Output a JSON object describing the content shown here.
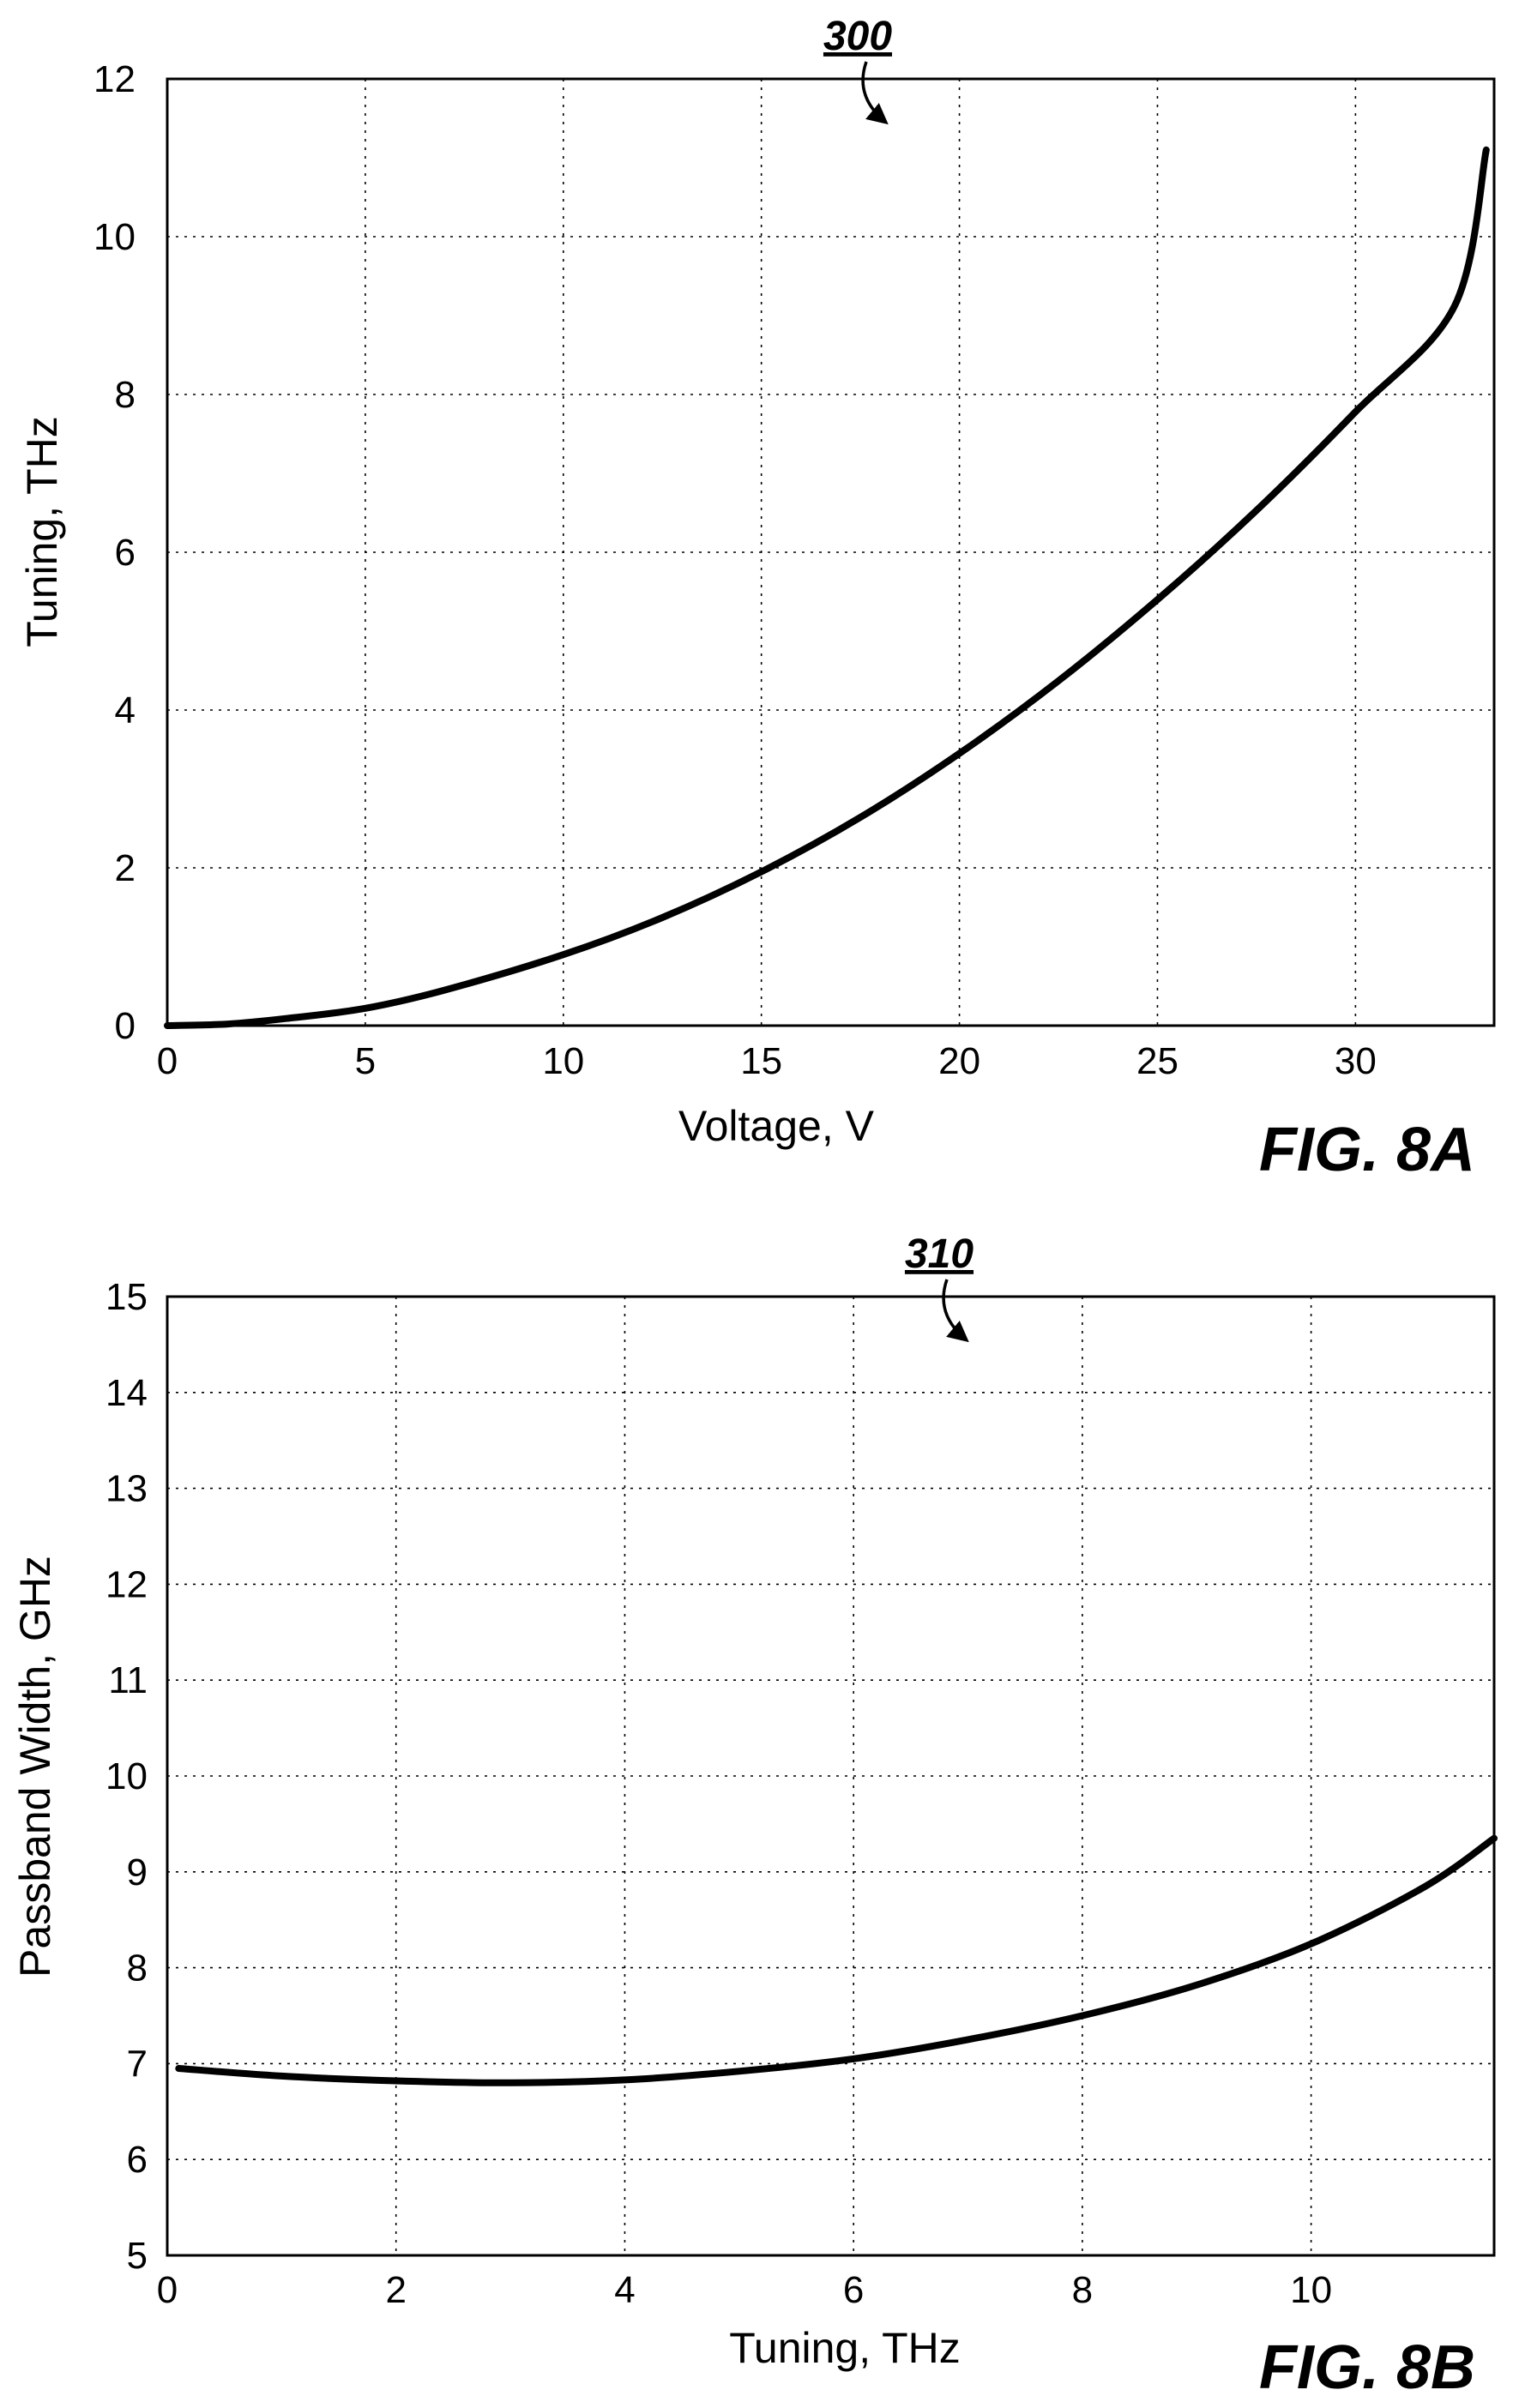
{
  "chart_data": [
    {
      "type": "line",
      "figure_label": "FIG. 8A",
      "reference_numeral": "300",
      "xlabel": "Voltage, V",
      "ylabel": "Tuning, THz",
      "xlim": [
        0,
        33.5
      ],
      "ylim": [
        0,
        12
      ],
      "xticks": [
        0,
        5,
        10,
        15,
        20,
        25,
        30
      ],
      "yticks": [
        0,
        2,
        4,
        6,
        8,
        10,
        12
      ],
      "grid": true,
      "series": [
        {
          "x": [
            0,
            1.5,
            3,
            5,
            7,
            10,
            12.5,
            15,
            17.5,
            20,
            22.5,
            25,
            27.5,
            30,
            32.5,
            33.3
          ],
          "y": [
            0,
            0.02,
            0.09,
            0.22,
            0.45,
            0.9,
            1.37,
            1.95,
            2.64,
            3.45,
            4.37,
            5.4,
            6.53,
            7.78,
            9.12,
            11.1
          ]
        }
      ]
    },
    {
      "type": "line",
      "figure_label": "FIG. 8B",
      "reference_numeral": "310",
      "xlabel": "Tuning, THz",
      "ylabel": "Passband Width, GHz",
      "xlim": [
        0,
        11.6
      ],
      "ylim": [
        5,
        15
      ],
      "xticks": [
        0,
        2,
        4,
        6,
        8,
        10
      ],
      "yticks": [
        5,
        6,
        7,
        8,
        9,
        10,
        11,
        12,
        13,
        14,
        15
      ],
      "grid": true,
      "series": [
        {
          "x": [
            0.1,
            1,
            2,
            3,
            4,
            5,
            6,
            7,
            8,
            9,
            10,
            11,
            11.6
          ],
          "y": [
            6.95,
            6.87,
            6.82,
            6.8,
            6.83,
            6.92,
            7.05,
            7.25,
            7.5,
            7.82,
            8.25,
            8.85,
            9.35
          ]
        }
      ]
    }
  ]
}
